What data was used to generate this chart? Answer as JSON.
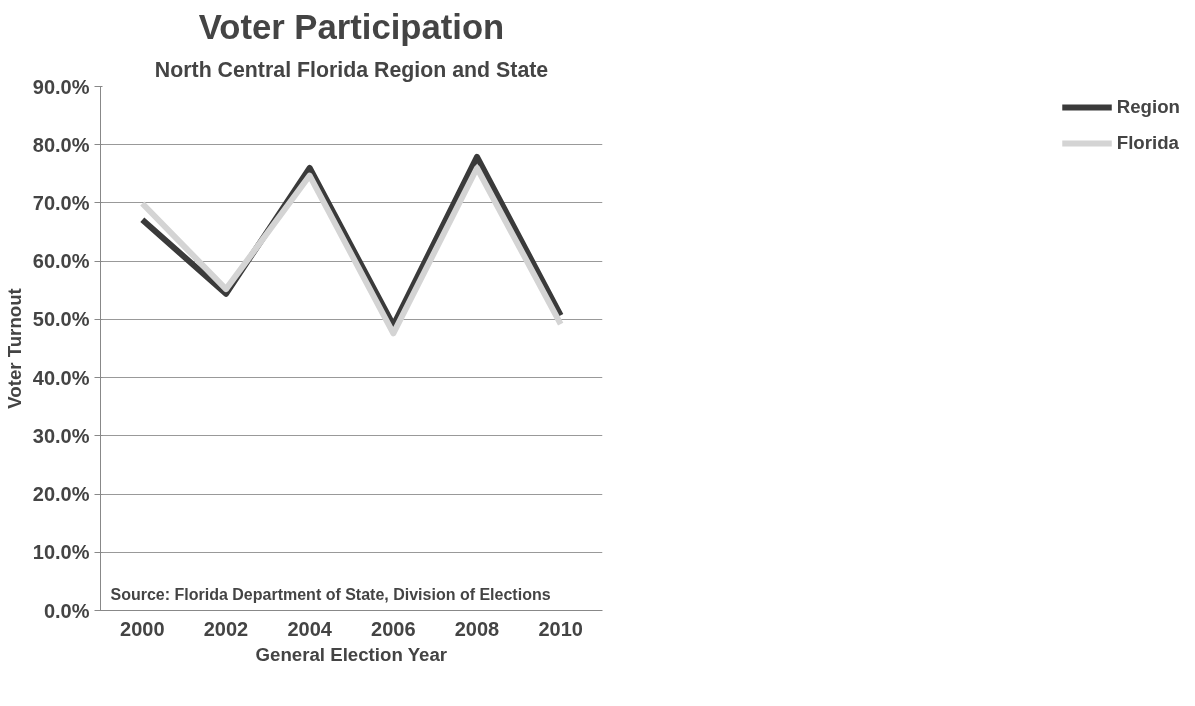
{
  "chart_data": {
    "type": "line",
    "title": "Voter Participation",
    "subtitle": "North Central Florida Region and State",
    "xlabel": "General Election Year",
    "ylabel": "Voter Turnout",
    "categories": [
      "2000",
      "2002",
      "2004",
      "2006",
      "2008",
      "2010"
    ],
    "series": [
      {
        "name": "Region",
        "color": "#3a3a3a",
        "values": [
          67.1,
          54.4,
          76.0,
          49.0,
          77.9,
          50.7
        ]
      },
      {
        "name": "Florida",
        "color": "#d4d4d4",
        "values": [
          69.9,
          55.2,
          74.7,
          47.6,
          76.0,
          49.2
        ]
      }
    ],
    "ylim": [
      0,
      90
    ],
    "yticks": [
      {
        "value": 0,
        "label": "0.0%"
      },
      {
        "value": 10,
        "label": "10.0%"
      },
      {
        "value": 20,
        "label": "20.0%"
      },
      {
        "value": 30,
        "label": "30.0%"
      },
      {
        "value": 40,
        "label": "40.0%"
      },
      {
        "value": 50,
        "label": "50.0%"
      },
      {
        "value": 60,
        "label": "60.0%"
      },
      {
        "value": 70,
        "label": "70.0%"
      },
      {
        "value": 80,
        "label": "80.0%"
      },
      {
        "value": 90,
        "label": "90.0%"
      }
    ],
    "grid": "y",
    "legend": "right",
    "marker": "none",
    "line_style": "solid",
    "annotations": [
      "Source:    Florida Department of State, Division of Elections"
    ]
  }
}
